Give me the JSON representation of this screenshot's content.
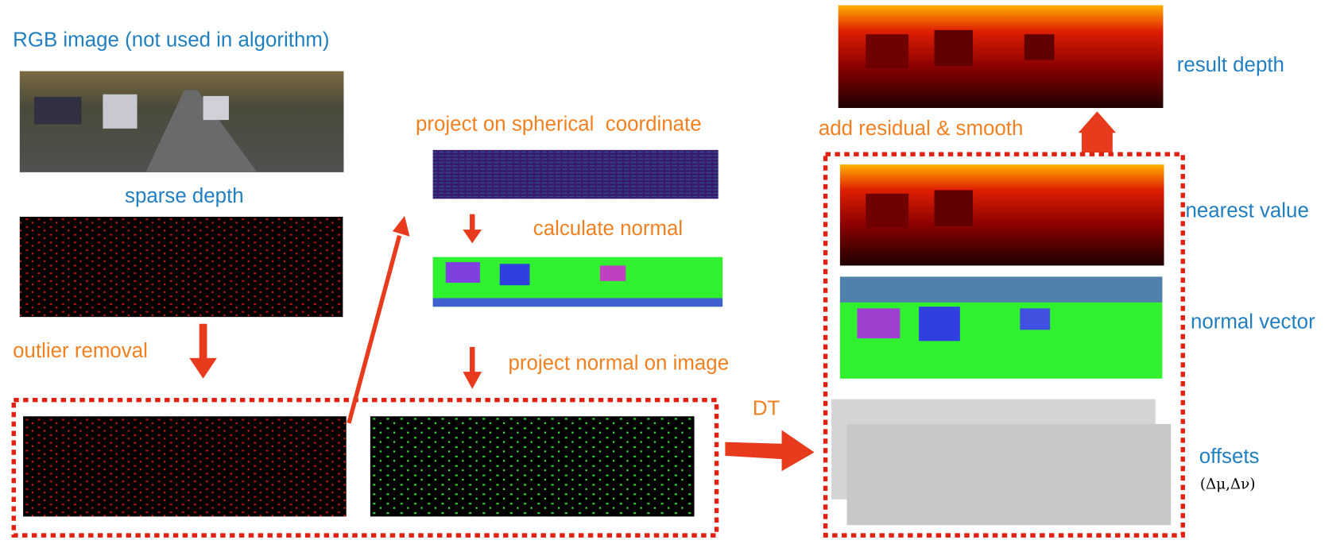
{
  "labels": {
    "rgb_image": "RGB image (not used in algorithm)",
    "sparse_depth": "sparse depth",
    "outlier_removal": "outlier removal",
    "project_spherical": "project on spherical  coordinate",
    "calculate_normal": "calculate normal",
    "project_normal": "project normal on image",
    "dt": "DT",
    "add_residual": "add residual & smooth",
    "result_depth": "result depth",
    "nearest_value": "nearest value",
    "normal_vector": "normal vector",
    "offsets": "offsets",
    "offsets_symbol": "(Δμ,Δν)"
  }
}
